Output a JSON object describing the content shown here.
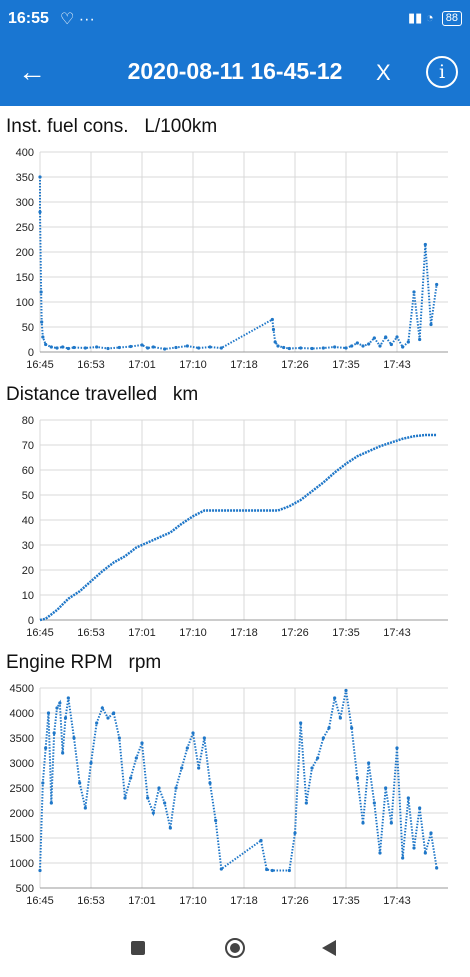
{
  "status": {
    "time": "16:55",
    "left_icons": "♡ ···",
    "right_icons": "▮▮ ◔",
    "battery": "88"
  },
  "header": {
    "title": "2020-08-11 16-45-12",
    "close_label": "X",
    "info_label": "i",
    "back_label": "←"
  },
  "colors": {
    "accent": "#1976D2",
    "series": "#1f77c8",
    "grid": "#d8d8d8"
  },
  "chart_data": [
    {
      "type": "scatter",
      "title": "Inst. fuel cons.",
      "unit": "L/100km",
      "xlabel": "",
      "ylabel": "",
      "x_ticks": [
        "16:45",
        "16:53",
        "17:01",
        "17:10",
        "17:18",
        "17:26",
        "17:35",
        "17:43"
      ],
      "y_ticks": [
        0,
        50,
        100,
        150,
        200,
        250,
        300,
        350,
        400
      ],
      "ylim": [
        0,
        400
      ],
      "grid": true,
      "points": [
        [
          0,
          350
        ],
        [
          0,
          280
        ],
        [
          0.2,
          120
        ],
        [
          0.3,
          60
        ],
        [
          0.5,
          30
        ],
        [
          1,
          15
        ],
        [
          2,
          10
        ],
        [
          3,
          8
        ],
        [
          4,
          10
        ],
        [
          5,
          7
        ],
        [
          6,
          9
        ],
        [
          8,
          8
        ],
        [
          10,
          10
        ],
        [
          12,
          7
        ],
        [
          14,
          9
        ],
        [
          16,
          11
        ],
        [
          18,
          14
        ],
        [
          19,
          8
        ],
        [
          20,
          10
        ],
        [
          22,
          6
        ],
        [
          24,
          9
        ],
        [
          26,
          12
        ],
        [
          28,
          8
        ],
        [
          30,
          10
        ],
        [
          32,
          8
        ],
        [
          41,
          65
        ],
        [
          41.2,
          45
        ],
        [
          41.5,
          20
        ],
        [
          42,
          12
        ],
        [
          43,
          9
        ],
        [
          44,
          7
        ],
        [
          46,
          8
        ],
        [
          48,
          7
        ],
        [
          50,
          8
        ],
        [
          52,
          10
        ],
        [
          54,
          8
        ],
        [
          55,
          12
        ],
        [
          56,
          18
        ],
        [
          57,
          12
        ],
        [
          58,
          16
        ],
        [
          59,
          28
        ],
        [
          60,
          12
        ],
        [
          61,
          30
        ],
        [
          62,
          15
        ],
        [
          63,
          30
        ],
        [
          64,
          10
        ],
        [
          65,
          20
        ],
        [
          66,
          120
        ],
        [
          67,
          25
        ],
        [
          68,
          215
        ],
        [
          69,
          55
        ],
        [
          70,
          135
        ]
      ]
    },
    {
      "type": "line",
      "title": "Distance travelled",
      "unit": "km",
      "xlabel": "",
      "ylabel": "",
      "x_ticks": [
        "16:45",
        "16:53",
        "17:01",
        "17:10",
        "17:18",
        "17:26",
        "17:35",
        "17:43"
      ],
      "y_ticks": [
        0,
        10,
        20,
        30,
        40,
        50,
        60,
        70,
        80
      ],
      "ylim": [
        0,
        80
      ],
      "grid": true,
      "points": [
        [
          0,
          0
        ],
        [
          1,
          0.5
        ],
        [
          3,
          4
        ],
        [
          5,
          8.5
        ],
        [
          7,
          11.5
        ],
        [
          9,
          15.5
        ],
        [
          11,
          19.5
        ],
        [
          13,
          23
        ],
        [
          15,
          25.5
        ],
        [
          17,
          29
        ],
        [
          19,
          31
        ],
        [
          21,
          33
        ],
        [
          23,
          35
        ],
        [
          25,
          38.5
        ],
        [
          27,
          41.5
        ],
        [
          29,
          43.8
        ],
        [
          30,
          43.8
        ],
        [
          42,
          43.8
        ],
        [
          44,
          45.5
        ],
        [
          46,
          48
        ],
        [
          48,
          51.5
        ],
        [
          50,
          55
        ],
        [
          52,
          59
        ],
        [
          54,
          62.5
        ],
        [
          56,
          65.5
        ],
        [
          58,
          67.5
        ],
        [
          60,
          69.5
        ],
        [
          62,
          71
        ],
        [
          64,
          72.5
        ],
        [
          66,
          73.5
        ],
        [
          68,
          74
        ],
        [
          70,
          74
        ]
      ]
    },
    {
      "type": "scatter",
      "title": "Engine RPM",
      "unit": "rpm",
      "xlabel": "",
      "ylabel": "",
      "x_ticks": [
        "16:45",
        "16:53",
        "17:01",
        "17:10",
        "17:18",
        "17:26",
        "17:35",
        "17:43"
      ],
      "y_ticks": [
        500,
        1000,
        1500,
        2000,
        2500,
        3000,
        3500,
        4000,
        4500
      ],
      "ylim": [
        500,
        4500
      ],
      "grid": true,
      "points": [
        [
          0,
          850
        ],
        [
          0.5,
          2600
        ],
        [
          1,
          3300
        ],
        [
          1.5,
          4000
        ],
        [
          2,
          2200
        ],
        [
          2.5,
          3600
        ],
        [
          3,
          4100
        ],
        [
          3.5,
          4200
        ],
        [
          4,
          3200
        ],
        [
          4.5,
          3900
        ],
        [
          5,
          4300
        ],
        [
          6,
          3500
        ],
        [
          7,
          2600
        ],
        [
          8,
          2100
        ],
        [
          9,
          3000
        ],
        [
          10,
          3800
        ],
        [
          11,
          4100
        ],
        [
          12,
          3900
        ],
        [
          13,
          4000
        ],
        [
          14,
          3500
        ],
        [
          15,
          2300
        ],
        [
          16,
          2700
        ],
        [
          17,
          3100
        ],
        [
          18,
          3400
        ],
        [
          19,
          2300
        ],
        [
          20,
          2000
        ],
        [
          21,
          2500
        ],
        [
          22,
          2200
        ],
        [
          23,
          1700
        ],
        [
          24,
          2500
        ],
        [
          25,
          2900
        ],
        [
          26,
          3300
        ],
        [
          27,
          3600
        ],
        [
          28,
          2900
        ],
        [
          29,
          3500
        ],
        [
          30,
          2600
        ],
        [
          31,
          1850
        ],
        [
          32,
          880
        ],
        [
          39,
          1450
        ],
        [
          40,
          870
        ],
        [
          41,
          850
        ],
        [
          44,
          850
        ],
        [
          45,
          1600
        ],
        [
          46,
          3800
        ],
        [
          47,
          2200
        ],
        [
          48,
          2900
        ],
        [
          49,
          3100
        ],
        [
          50,
          3500
        ],
        [
          51,
          3700
        ],
        [
          52,
          4300
        ],
        [
          53,
          3900
        ],
        [
          54,
          4450
        ],
        [
          55,
          3700
        ],
        [
          56,
          2700
        ],
        [
          57,
          1800
        ],
        [
          58,
          3000
        ],
        [
          59,
          2200
        ],
        [
          60,
          1200
        ],
        [
          61,
          2500
        ],
        [
          62,
          1800
        ],
        [
          63,
          3300
        ],
        [
          64,
          1100
        ],
        [
          65,
          2300
        ],
        [
          66,
          1300
        ],
        [
          67,
          2100
        ],
        [
          68,
          1200
        ],
        [
          69,
          1600
        ],
        [
          70,
          900
        ]
      ]
    }
  ]
}
